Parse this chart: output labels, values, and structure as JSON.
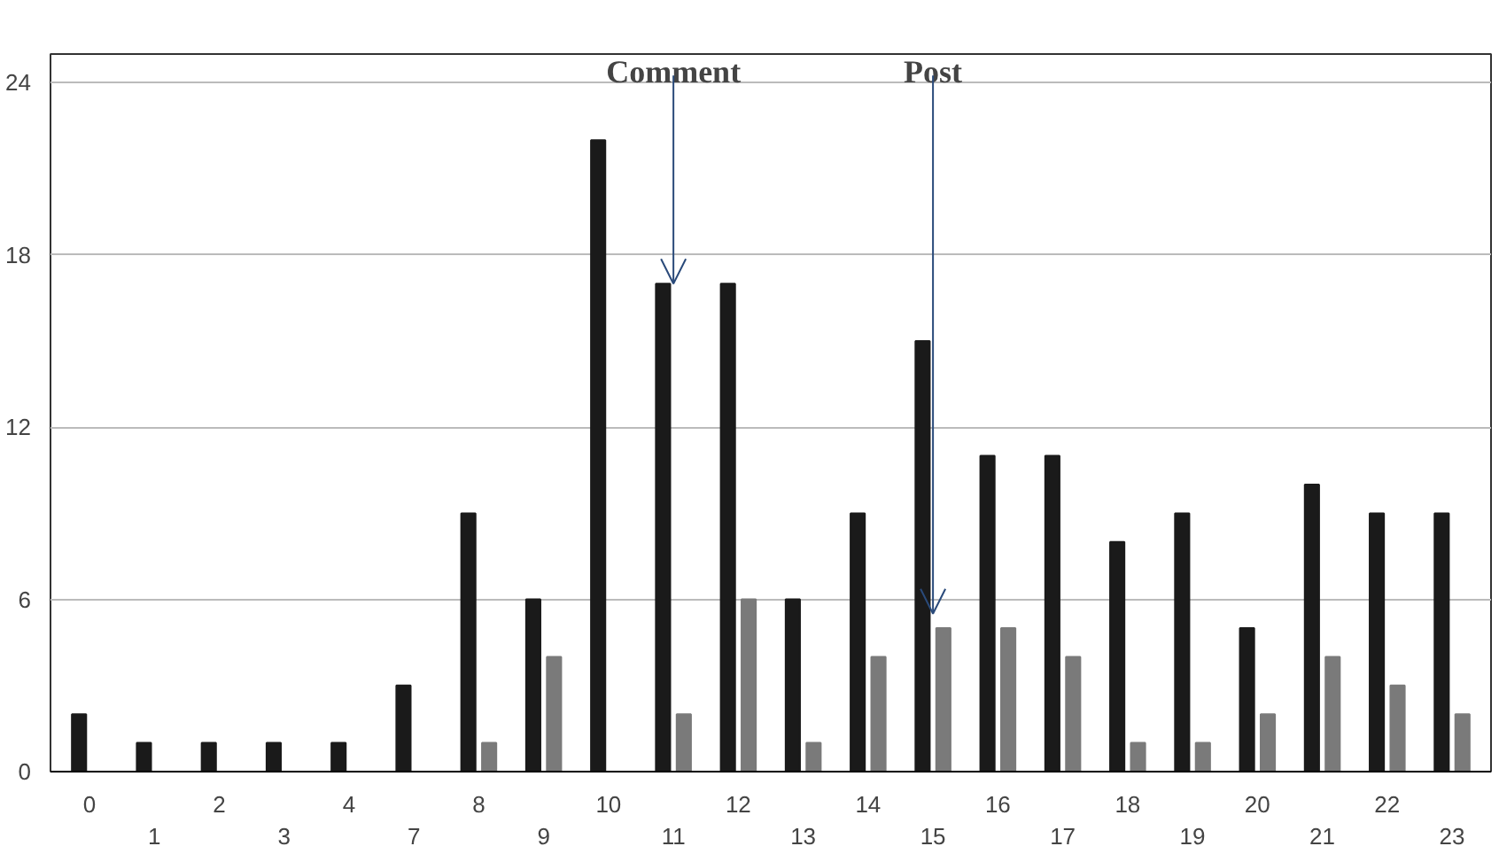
{
  "chart_data": {
    "type": "bar",
    "categories": [
      "0",
      "1",
      "2",
      "3",
      "4",
      "7",
      "8",
      "9",
      "10",
      "11",
      "12",
      "13",
      "14",
      "15",
      "16",
      "17",
      "18",
      "19",
      "20",
      "21",
      "22",
      "23"
    ],
    "series": [
      {
        "color": "#1a1a1a",
        "values": [
          2,
          1,
          1,
          1,
          1,
          3,
          9,
          6,
          22,
          17,
          17,
          6,
          9,
          15,
          11,
          11,
          8,
          9,
          5,
          10,
          9,
          9
        ]
      },
      {
        "color": "#7a7a7a",
        "values": [
          0,
          0,
          0,
          0,
          0,
          0,
          1,
          4,
          0,
          2,
          6,
          1,
          4,
          5,
          5,
          4,
          1,
          1,
          2,
          4,
          3,
          2
        ]
      }
    ],
    "ylim": [
      0,
      25
    ],
    "yticks": [
      0,
      6,
      12,
      18,
      24
    ],
    "grid": "y",
    "annotations": [
      {
        "text": "Comment",
        "x": "11",
        "y": 17
      },
      {
        "text": "Post",
        "x": "15",
        "y": 5.5
      }
    ]
  }
}
